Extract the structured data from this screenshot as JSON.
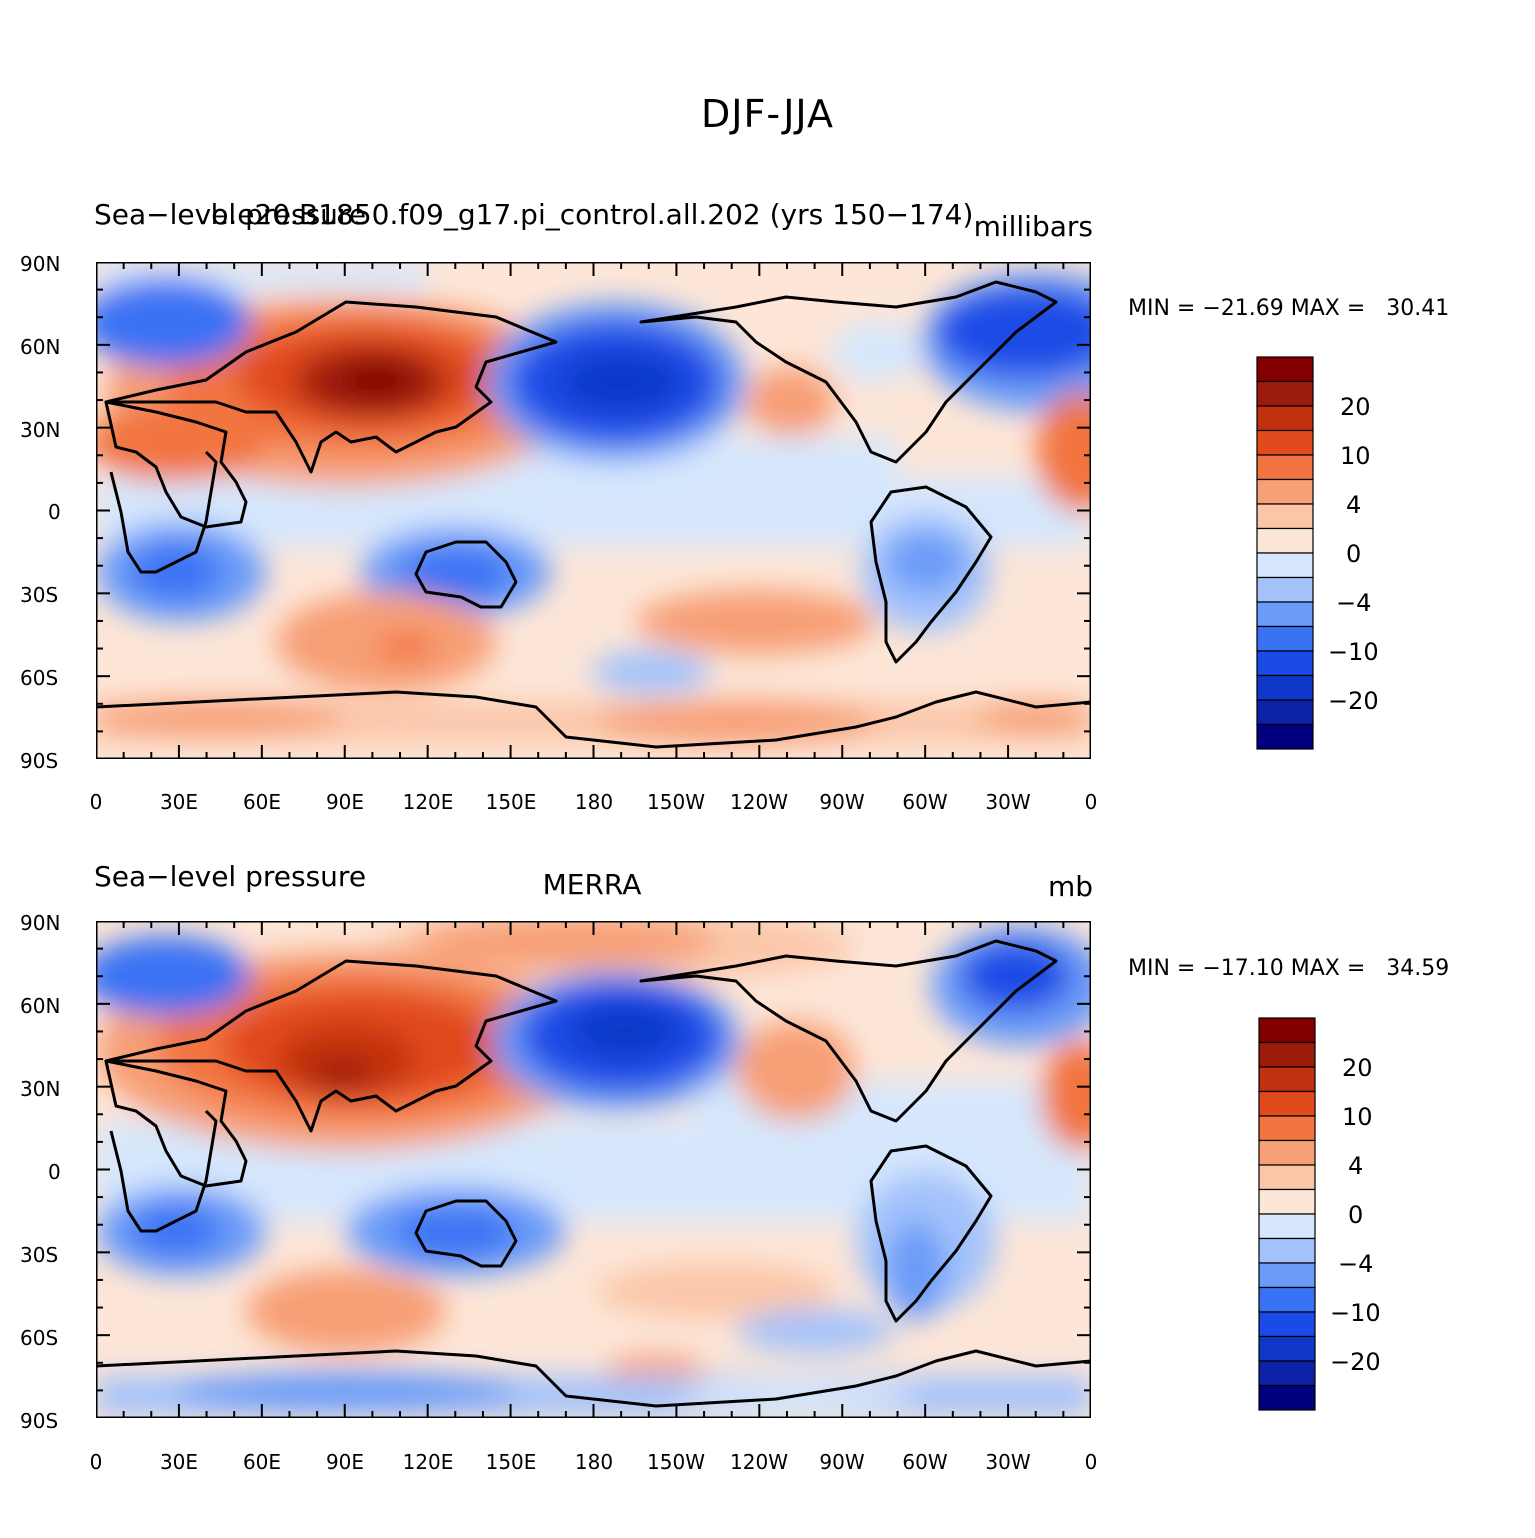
{
  "figure_title": "DJF-JJA",
  "lat_ticks": [
    "90N",
    "60N",
    "30N",
    "0",
    "30S",
    "60S",
    "90S"
  ],
  "lon_ticks": [
    "0",
    "30E",
    "60E",
    "90E",
    "120E",
    "150E",
    "180",
    "150W",
    "120W",
    "90W",
    "60W",
    "30W",
    "0"
  ],
  "colorbar": {
    "colors": [
      "#00007f",
      "#0b22a6",
      "#0f37c8",
      "#1a4be6",
      "#3a72f4",
      "#6b9bf8",
      "#a3c2fb",
      "#d6e7fd",
      "#fde6d7",
      "#fbc6a8",
      "#f79f76",
      "#f27440",
      "#e04a1c",
      "#c2310f",
      "#9d1b0a",
      "#820000"
    ],
    "labels": [
      "20",
      "10",
      "4",
      "0",
      "−4",
      "−10",
      "−20"
    ]
  },
  "panels": [
    {
      "left_title": "Sea−level pressure",
      "center_title": "b.e20.B1850.f09_g17.pi_control.all.202 (yrs 150−174)",
      "right_title": "millibars",
      "min_max": "MIN = −21.69 MAX =   30.41"
    },
    {
      "left_title": "Sea−level pressure",
      "center_title": "MERRA",
      "right_title": "mb",
      "min_max": "MIN = −17.10 MAX =   34.59"
    }
  ]
}
